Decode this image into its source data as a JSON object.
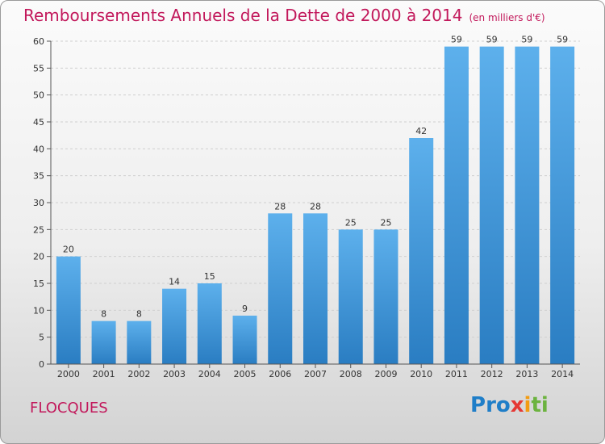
{
  "title": "Remboursements Annuels de la Dette de 2000 à 2014",
  "unit": "(en milliers d'€)",
  "town": "FLOCQUES",
  "logo": "Proxiti",
  "colors": {
    "bar": "#3a90d6",
    "title": "#c2185b"
  },
  "chart_data": {
    "type": "bar",
    "categories": [
      "2000",
      "2001",
      "2002",
      "2003",
      "2004",
      "2005",
      "2006",
      "2007",
      "2008",
      "2009",
      "2010",
      "2011",
      "2012",
      "2013",
      "2014"
    ],
    "values": [
      20,
      8,
      8,
      14,
      15,
      9,
      28,
      28,
      25,
      25,
      42,
      59,
      59,
      59,
      59
    ],
    "ylim": [
      0,
      60
    ],
    "yticks": [
      0,
      5,
      10,
      15,
      20,
      25,
      30,
      35,
      40,
      45,
      50,
      55,
      60
    ],
    "grid": true
  }
}
